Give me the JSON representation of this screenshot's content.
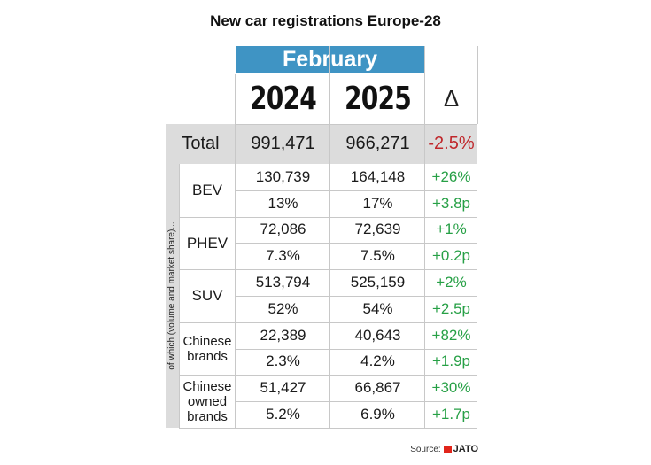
{
  "chart_data": {
    "type": "table",
    "title": "New car registrations Europe-28",
    "month": "February",
    "columns": [
      "2024",
      "2025",
      "Δ"
    ],
    "total": {
      "label": "Total",
      "v2024": "991,471",
      "v2025": "966,271",
      "delta": "-2.5%"
    },
    "side_label": "of which (volume and market share)...",
    "groups": [
      {
        "label": "BEV",
        "volume": [
          "130,739",
          "164,148",
          "+26%"
        ],
        "share": [
          "13%",
          "17%",
          "+3.8p"
        ]
      },
      {
        "label": "PHEV",
        "volume": [
          "72,086",
          "72,639",
          "+1%"
        ],
        "share": [
          "7.3%",
          "7.5%",
          "+0.2p"
        ]
      },
      {
        "label": "SUV",
        "volume": [
          "513,794",
          "525,159",
          "+2%"
        ],
        "share": [
          "52%",
          "54%",
          "+2.5p"
        ]
      },
      {
        "label": "Chinese brands",
        "volume": [
          "22,389",
          "40,643",
          "+82%"
        ],
        "share": [
          "2.3%",
          "4.2%",
          "+1.9p"
        ]
      },
      {
        "label": "Chinese owned brands",
        "volume": [
          "51,427",
          "66,867",
          "+30%"
        ],
        "share": [
          "5.2%",
          "6.9%",
          "+1.7p"
        ]
      }
    ]
  },
  "source": {
    "label": "Source:",
    "brand": "JATO"
  },
  "colors": {
    "header_blue": "#3f94c4",
    "negative": "#c0282c",
    "positive": "#27a046",
    "grey": "#dcdcdc"
  }
}
